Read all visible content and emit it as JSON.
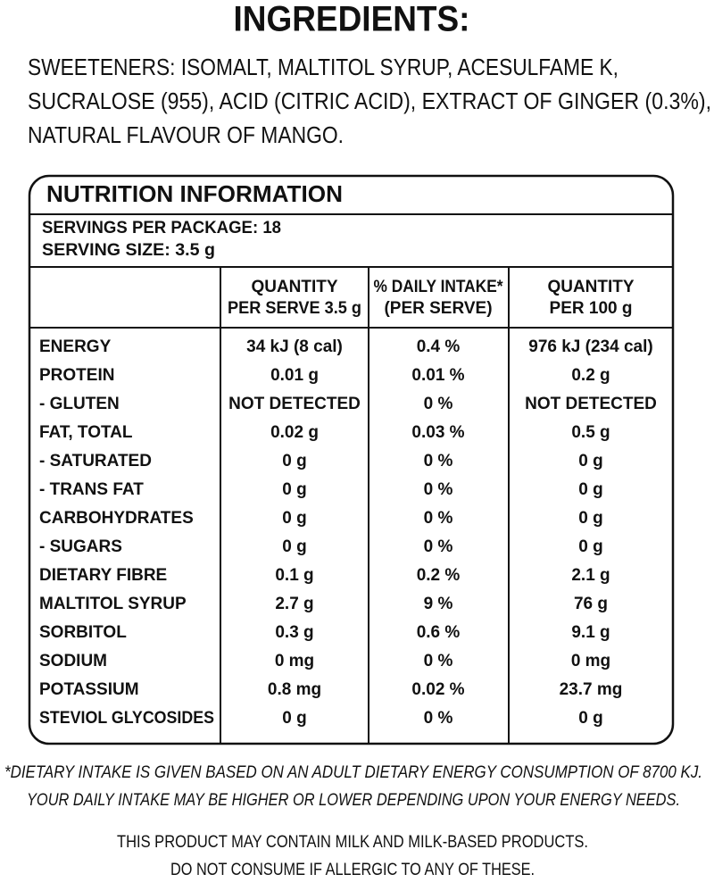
{
  "title": "INGREDIENTS:",
  "ingredients": [
    "SWEETENERS: ISOMALT, MALTITOL SYRUP, ACESULFAME K,",
    "SUCRALOSE (955), ACID (CITRIC ACID), EXTRACT OF GINGER (0.3%),",
    "NATURAL FLAVOUR OF MANGO."
  ],
  "nutrition": {
    "heading": "NUTRITION INFORMATION",
    "servings": [
      "SERVINGS PER PACKAGE: 18",
      "SERVING SIZE: 3.5 g"
    ],
    "columns": [
      [
        "QUANTITY",
        "PER SERVE 3.5 g"
      ],
      [
        "% DAILY INTAKE*",
        "(PER SERVE)"
      ],
      [
        "QUANTITY",
        "PER 100 g"
      ]
    ],
    "rows": [
      [
        "ENERGY",
        "34 kJ (8 cal)",
        "0.4 %",
        "976 kJ (234 cal)"
      ],
      [
        "PROTEIN",
        "0.01 g",
        "0.01 %",
        "0.2 g"
      ],
      [
        "- GLUTEN",
        "NOT DETECTED",
        "0 %",
        "NOT DETECTED"
      ],
      [
        "FAT, TOTAL",
        "0.02 g",
        "0.03 %",
        "0.5 g"
      ],
      [
        "- SATURATED",
        "0 g",
        "0 %",
        "0 g"
      ],
      [
        "- TRANS FAT",
        "0 g",
        "0 %",
        "0 g"
      ],
      [
        "CARBOHYDRATES",
        "0 g",
        "0 %",
        "0 g"
      ],
      [
        "- SUGARS",
        "0 g",
        "0 %",
        "0 g"
      ],
      [
        "DIETARY FIBRE",
        "0.1 g",
        "0.2 %",
        "2.1 g"
      ],
      [
        "MALTITOL SYRUP",
        "2.7 g",
        "9 %",
        "76 g"
      ],
      [
        "SORBITOL",
        "0.3 g",
        "0.6 %",
        "9.1 g"
      ],
      [
        "SODIUM",
        "0 mg",
        "0 %",
        "0 mg"
      ],
      [
        "POTASSIUM",
        "0.8 mg",
        "0.02 %",
        "23.7 mg"
      ],
      [
        "STEVIOL GLYCOSIDES",
        "0 g",
        "0 %",
        "0 g"
      ]
    ]
  },
  "footnote": [
    "*DIETARY INTAKE IS GIVEN BASED ON AN ADULT DIETARY ENERGY CONSUMPTION OF 8700 KJ.",
    "YOUR DAILY INTAKE MAY BE HIGHER OR LOWER DEPENDING UPON YOUR ENERGY NEEDS."
  ],
  "allergy": [
    "THIS PRODUCT MAY CONTAIN MILK AND MILK-BASED PRODUCTS.",
    "DO NOT CONSUME IF ALLERGIC TO ANY OF THESE."
  ]
}
